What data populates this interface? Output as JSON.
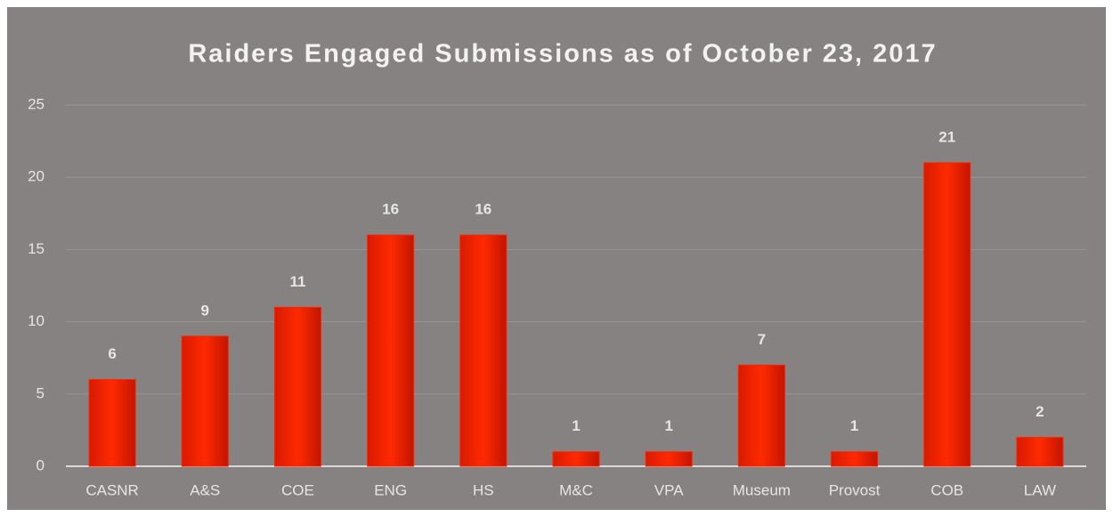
{
  "chart_data": {
    "type": "bar",
    "title": "Raiders Engaged Submissions as of October 23, 2017",
    "categories": [
      "CASNR",
      "A&S",
      "COE",
      "ENG",
      "HS",
      "M&C",
      "VPA",
      "Museum",
      "Provost",
      "COB",
      "LAW"
    ],
    "values": [
      6,
      9,
      11,
      16,
      16,
      1,
      1,
      7,
      1,
      21,
      2
    ],
    "color": "#ff2200",
    "ylim": [
      0,
      25
    ],
    "yticks": [
      0,
      5,
      10,
      15,
      20,
      25
    ],
    "grid": true
  }
}
